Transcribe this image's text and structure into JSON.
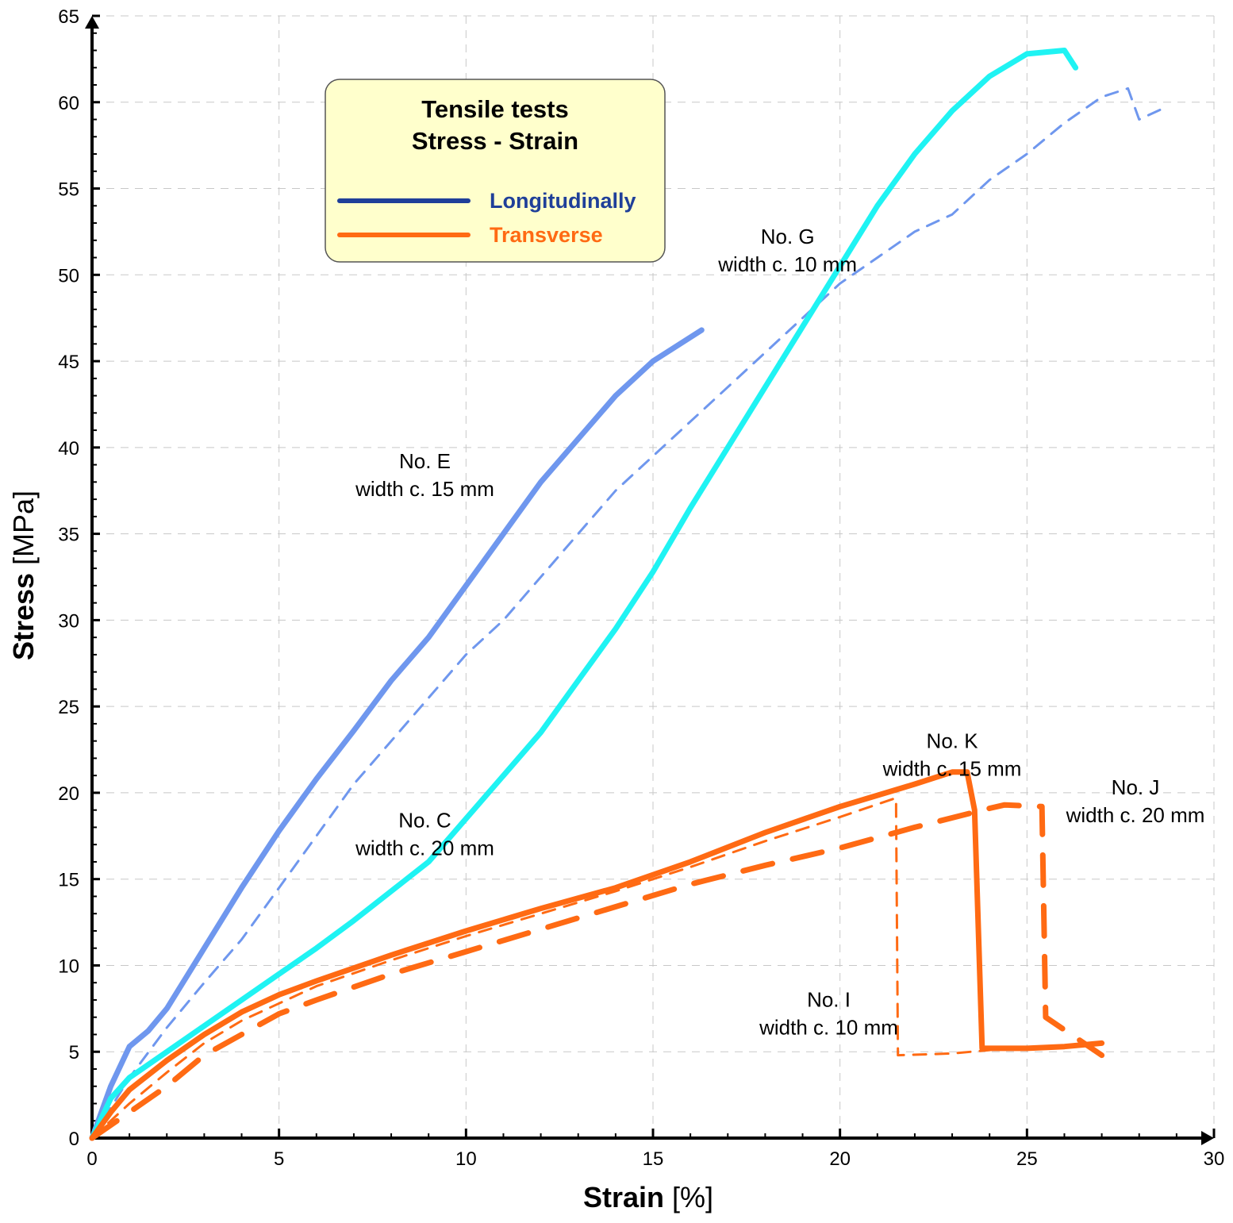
{
  "chart_data": {
    "type": "line",
    "title": "",
    "xlabel": "Strain [%]",
    "xlabel_main": "Strain",
    "xlabel_unit": "[%]",
    "ylabel": "Stress [MPa]",
    "ylabel_main": "Stress",
    "ylabel_unit": "[MPa]",
    "xlim": [
      0,
      30
    ],
    "ylim": [
      0,
      65
    ],
    "x_ticks": [
      0,
      5,
      10,
      15,
      20,
      25,
      30
    ],
    "y_ticks": [
      0,
      5,
      10,
      15,
      20,
      25,
      30,
      35,
      40,
      45,
      50,
      55,
      60,
      65
    ],
    "grid": true,
    "legend": {
      "position": "top-left",
      "title_lines": [
        "Tensile tests",
        "Stress - Strain"
      ],
      "entries": [
        {
          "label": "Longitudinally",
          "color": "#1f3f99"
        },
        {
          "label": "Transverse",
          "color": "#ff6a13"
        }
      ]
    },
    "annotations": [
      {
        "id": "E",
        "lines": [
          "No. E",
          "width c. 15 mm"
        ],
        "x": 8.9,
        "y": 38.8
      },
      {
        "id": "G",
        "lines": [
          "No. G",
          "width c. 10 mm"
        ],
        "x": 18.6,
        "y": 51.8
      },
      {
        "id": "C",
        "lines": [
          "No. C",
          "width c. 20 mm"
        ],
        "x": 8.9,
        "y": 18.0
      },
      {
        "id": "K",
        "lines": [
          "No. K",
          "width c. 15 mm"
        ],
        "x": 23.0,
        "y": 22.6
      },
      {
        "id": "J",
        "lines": [
          "No. J",
          "width c. 20 mm"
        ],
        "x": 27.9,
        "y": 19.9
      },
      {
        "id": "I",
        "lines": [
          "No. I",
          "width c. 10 mm"
        ],
        "x": 19.7,
        "y": 7.6
      }
    ],
    "series": [
      {
        "name": "No. E",
        "color": "#6f97ee",
        "style": "solid",
        "width": 7,
        "x": [
          0,
          0.5,
          1,
          1.5,
          2,
          3,
          4,
          5,
          6,
          7,
          8,
          9,
          10,
          11,
          12,
          13,
          14,
          15,
          16.3
        ],
        "y": [
          0,
          3,
          5.3,
          6.2,
          7.5,
          11,
          14.5,
          17.8,
          20.8,
          23.6,
          26.5,
          29,
          32,
          35,
          38,
          40.5,
          43,
          45,
          46.8
        ]
      },
      {
        "name": "No. G",
        "color": "#6f97ee",
        "style": "dashed",
        "width": 3,
        "x": [
          0,
          1,
          2,
          3,
          4,
          5,
          6,
          7,
          8,
          9,
          10,
          11,
          12,
          13,
          14,
          15,
          16,
          17,
          18,
          19,
          20,
          21,
          22,
          23,
          24,
          25,
          26,
          27,
          27.7,
          28,
          28.6
        ],
        "y": [
          0,
          3.5,
          6.4,
          9,
          11.5,
          14.5,
          17.5,
          20.5,
          23,
          25.5,
          28,
          30,
          32.5,
          35,
          37.5,
          39.5,
          41.5,
          43.5,
          45.5,
          47.5,
          49.5,
          51,
          52.5,
          53.5,
          55.5,
          57,
          58.8,
          60.3,
          60.8,
          59,
          59.6
        ]
      },
      {
        "name": "No. C",
        "color": "#1ff3f3",
        "style": "solid",
        "width": 7,
        "x": [
          0,
          0.5,
          1,
          2,
          3,
          4,
          5,
          6,
          7,
          8,
          9,
          10,
          11,
          12,
          13,
          14,
          15,
          16,
          17,
          18,
          19,
          20,
          21,
          22,
          23,
          24,
          25,
          26,
          26.3
        ],
        "y": [
          0,
          2.3,
          3.5,
          5,
          6.5,
          8,
          9.5,
          11,
          12.6,
          14.3,
          16,
          18.5,
          21,
          23.5,
          26.5,
          29.5,
          32.8,
          36.5,
          40,
          43.5,
          47,
          50.5,
          54,
          57,
          59.5,
          61.5,
          62.8,
          63.0,
          62.0
        ]
      },
      {
        "name": "No. K",
        "color": "#ff6a13",
        "style": "solid",
        "width": 7,
        "x": [
          0,
          0.5,
          1,
          2,
          3,
          4,
          5,
          6,
          8,
          10,
          12,
          14,
          16,
          18,
          20,
          22,
          23,
          23.4,
          23.6,
          23.8,
          24,
          25,
          26,
          27
        ],
        "y": [
          0,
          1.5,
          2.8,
          4.5,
          6,
          7.3,
          8.3,
          9.1,
          10.6,
          12,
          13.3,
          14.5,
          16,
          17.7,
          19.2,
          20.5,
          21.2,
          21.2,
          19,
          5.2,
          5.2,
          5.2,
          5.3,
          5.5
        ]
      },
      {
        "name": "No. J",
        "color": "#ff6a13",
        "style": "dashed",
        "width": 7,
        "x": [
          0,
          1,
          2,
          3,
          4,
          5,
          6,
          8,
          10,
          12,
          14,
          16,
          18,
          20,
          22,
          24,
          24.4,
          25.4,
          25.5,
          27
        ],
        "y": [
          0,
          1.5,
          3,
          4.8,
          6,
          7.2,
          8,
          9.5,
          10.8,
          12.1,
          13.4,
          14.7,
          15.8,
          16.8,
          18,
          19.1,
          19.3,
          19.2,
          7.0,
          4.8
        ]
      },
      {
        "name": "No. I",
        "color": "#ff6a13",
        "style": "dashed",
        "width": 3,
        "x": [
          0,
          1,
          2,
          3,
          4,
          5,
          6,
          8,
          10,
          12,
          14,
          16,
          18,
          20,
          21.5,
          21.5,
          21.55,
          23,
          24
        ],
        "y": [
          0,
          2,
          3.8,
          5.5,
          6.8,
          7.8,
          8.8,
          10.3,
          11.7,
          13,
          14.3,
          15.7,
          17.2,
          18.6,
          19.7,
          18.9,
          4.8,
          4.9,
          5.1
        ]
      }
    ]
  }
}
